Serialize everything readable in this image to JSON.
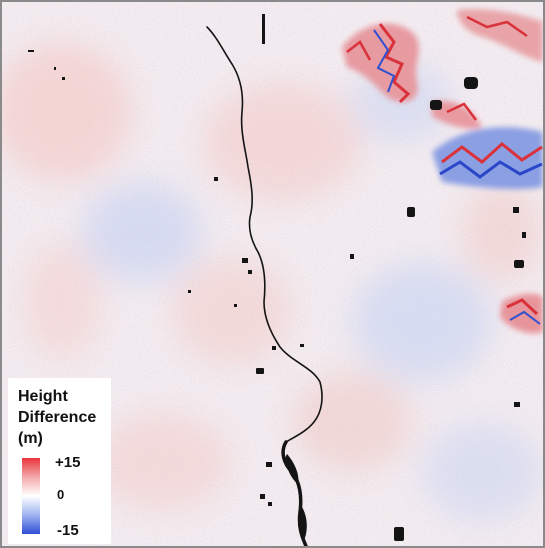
{
  "map": {
    "legend_title": "Height\nDifference\n(m)",
    "colorbar": {
      "max_label": "+15",
      "mid_label": "0",
      "min_label": "-15",
      "max_value": 15,
      "mid_value": 0,
      "min_value": -15,
      "colors": {
        "positive": "#e8343a",
        "zero": "#ffffff",
        "negative": "#2f4ed6",
        "nodata": "#111111"
      }
    }
  }
}
